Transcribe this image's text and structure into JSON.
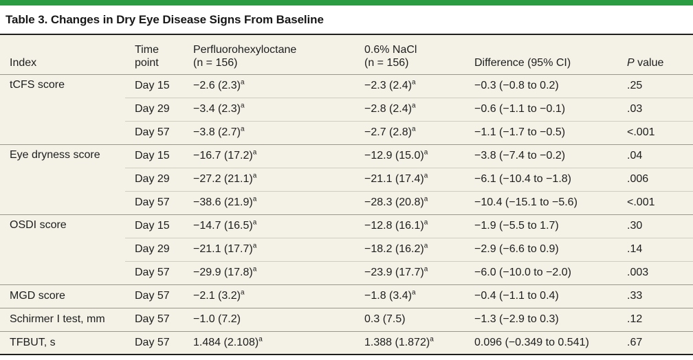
{
  "colors": {
    "accent_green": "#2b9c42",
    "table_background": "#f4f2e7",
    "rule_dark": "#1f1f1f",
    "rule_medium": "#9a978a",
    "rule_light": "#cfccc0",
    "text": "#1d1d1d"
  },
  "title": "Table 3. Changes in Dry Eye Disease Signs From Baseline",
  "header": {
    "index": "Index",
    "time_l1": "Time",
    "time_l2": "point",
    "pfho_l1": "Perfluorohexyloctane",
    "pfho_l2": "(n = 156)",
    "nacl_l1": "0.6% NaCl",
    "nacl_l2": "(n = 156)",
    "diff": "Difference (95% CI)",
    "p_italic": "P",
    "p_rest": "value"
  },
  "rows": [
    {
      "index": "tCFS score",
      "time": "Day 15",
      "pfho": "−2.6 (2.3)",
      "pfho_sup": "a",
      "nacl": "−2.3 (2.4)",
      "nacl_sup": "a",
      "diff": "−0.3 (−0.8 to 0.2)",
      "p": ".25"
    },
    {
      "time": "Day 29",
      "pfho": "−3.4 (2.3)",
      "pfho_sup": "a",
      "nacl": "−2.8 (2.4)",
      "nacl_sup": "a",
      "diff": "−0.6 (−1.1 to −0.1)",
      "p": ".03"
    },
    {
      "time": "Day 57",
      "pfho": "−3.8 (2.7)",
      "pfho_sup": "a",
      "nacl": "−2.7 (2.8)",
      "nacl_sup": "a",
      "diff": "−1.1 (−1.7 to −0.5)",
      "p": "<.001"
    },
    {
      "index": "Eye dryness score",
      "time": "Day 15",
      "pfho": "−16.7 (17.2)",
      "pfho_sup": "a",
      "nacl": "−12.9 (15.0)",
      "nacl_sup": "a",
      "diff": "−3.8 (−7.4 to −0.2)",
      "p": ".04"
    },
    {
      "time": "Day 29",
      "pfho": "−27.2 (21.1)",
      "pfho_sup": "a",
      "nacl": "−21.1 (17.4)",
      "nacl_sup": "a",
      "diff": "−6.1 (−10.4 to −1.8)",
      "p": ".006"
    },
    {
      "time": "Day 57",
      "pfho": "−38.6 (21.9)",
      "pfho_sup": "a",
      "nacl": "−28.3 (20.8)",
      "nacl_sup": "a",
      "diff": "−10.4 (−15.1 to −5.6)",
      "p": "<.001"
    },
    {
      "index": "OSDI score",
      "time": "Day 15",
      "pfho": "−14.7 (16.5)",
      "pfho_sup": "a",
      "nacl": "−12.8 (16.1)",
      "nacl_sup": "a",
      "diff": "−1.9 (−5.5 to 1.7)",
      "p": ".30"
    },
    {
      "time": "Day 29",
      "pfho": "−21.1 (17.7)",
      "pfho_sup": "a",
      "nacl": "−18.2 (16.2)",
      "nacl_sup": "a",
      "diff": "−2.9 (−6.6 to 0.9)",
      "p": ".14"
    },
    {
      "time": "Day 57",
      "pfho": "−29.9 (17.8)",
      "pfho_sup": "a",
      "nacl": "−23.9 (17.7)",
      "nacl_sup": "a",
      "diff": "−6.0 (−10.0 to −2.0)",
      "p": ".003"
    },
    {
      "index": "MGD score",
      "time": "Day 57",
      "pfho": "−2.1 (3.2)",
      "pfho_sup": "a",
      "nacl": "−1.8 (3.4)",
      "nacl_sup": "a",
      "diff": "−0.4 (−1.1 to 0.4)",
      "p": ".33"
    },
    {
      "index": "Schirmer I test, mm",
      "time": "Day 57",
      "pfho": "−1.0 (7.2)",
      "pfho_sup": "",
      "nacl": "0.3 (7.5)",
      "nacl_sup": "",
      "diff": "−1.3 (−2.9 to 0.3)",
      "p": ".12"
    },
    {
      "index": "TFBUT, s",
      "time": "Day 57",
      "pfho": "1.484 (2.108)",
      "pfho_sup": "a",
      "nacl": "1.388 (1.872)",
      "nacl_sup": "a",
      "diff": "0.096 (−0.349 to 0.541)",
      "p": ".67"
    }
  ]
}
